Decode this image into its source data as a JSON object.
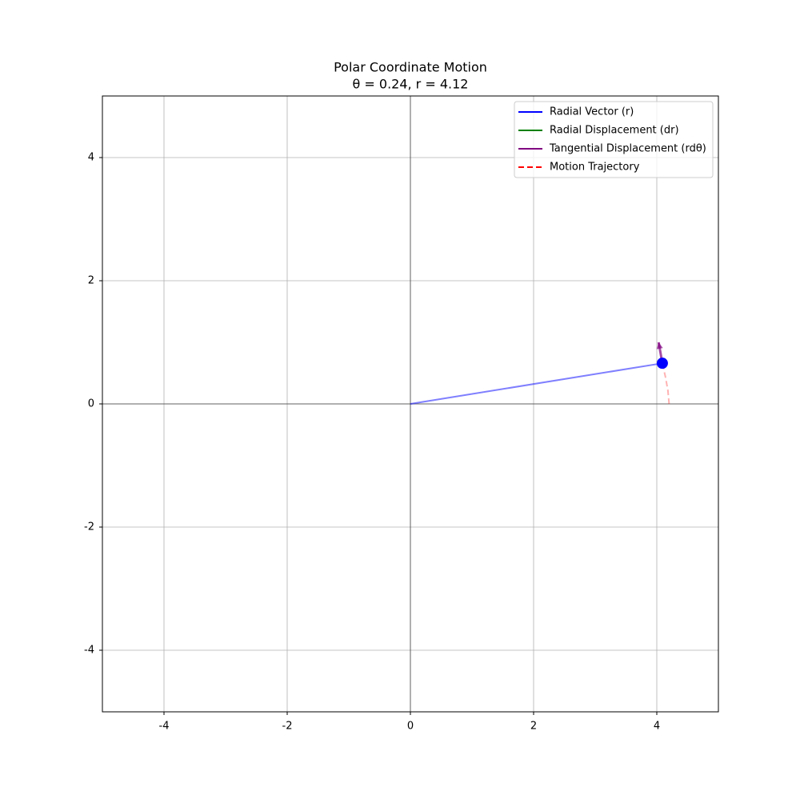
{
  "chart_data": {
    "type": "line",
    "title": "Polar Coordinate Motion",
    "subtitle": "θ = 0.24, r = 4.12",
    "xlim": [
      -5,
      5
    ],
    "ylim": [
      -5,
      5
    ],
    "xticks": [
      -4,
      -2,
      0,
      2,
      4
    ],
    "yticks": [
      -4,
      -2,
      0,
      2,
      4
    ],
    "grid": true,
    "legend_loc": "upper right",
    "series": [
      {
        "name": "Radial Vector (r)",
        "color": "#0000ff",
        "style": "solid",
        "opacity": 0.5,
        "arrow": false,
        "x": [
          0,
          4.09
        ],
        "y": [
          0,
          0.66
        ]
      },
      {
        "name": "Radial Displacement (dr)",
        "color": "#008000",
        "style": "solid",
        "opacity": 0.7,
        "arrow": true,
        "x": [
          4.09,
          4.09
        ],
        "y": [
          0.66,
          0.66
        ]
      },
      {
        "name": "Tangential Displacement (rdθ)",
        "color": "#800080",
        "style": "solid",
        "opacity": 0.7,
        "arrow": true,
        "x": [
          4.09,
          4.03
        ],
        "y": [
          0.66,
          1.0
        ]
      },
      {
        "name": "Motion Trajectory",
        "color": "#ff0000",
        "style": "dashed",
        "opacity": 0.3,
        "arrow": false,
        "x": [
          4.2,
          4.18,
          4.14,
          4.09
        ],
        "y": [
          0,
          0.22,
          0.44,
          0.66
        ]
      }
    ],
    "marker": {
      "x": 4.09,
      "y": 0.66,
      "color": "#0000ff"
    }
  }
}
